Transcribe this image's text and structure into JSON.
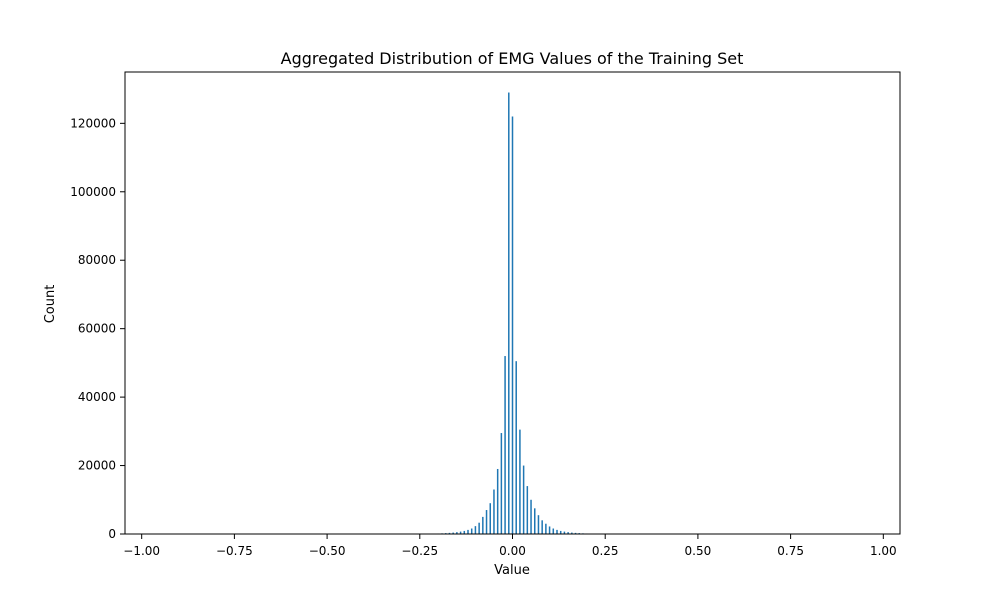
{
  "chart_data": {
    "type": "bar",
    "title": "Aggregated Distribution of EMG Values of the Training Set",
    "xlabel": "Value",
    "ylabel": "Count",
    "xlim": [
      -1.0,
      1.0
    ],
    "ylim": [
      0,
      135000
    ],
    "grid": false,
    "bar_color": "#1f77b4",
    "x_ticks": [
      -1.0,
      -0.75,
      -0.5,
      -0.25,
      0.0,
      0.25,
      0.5,
      0.75,
      1.0
    ],
    "x_tick_labels": [
      "−1.00",
      "−0.75",
      "−0.50",
      "−0.25",
      "0.00",
      "0.25",
      "0.50",
      "0.75",
      "1.00"
    ],
    "y_ticks": [
      0,
      20000,
      40000,
      60000,
      80000,
      100000,
      120000
    ],
    "y_tick_labels": [
      "0",
      "20000",
      "40000",
      "60000",
      "80000",
      "100000",
      "120000"
    ],
    "bar_width": 0.0035,
    "x": [
      -0.25,
      -0.24,
      -0.23,
      -0.22,
      -0.21,
      -0.2,
      -0.19,
      -0.18,
      -0.17,
      -0.16,
      -0.15,
      -0.14,
      -0.13,
      -0.12,
      -0.11,
      -0.1,
      -0.09,
      -0.08,
      -0.07,
      -0.06,
      -0.05,
      -0.04,
      -0.03,
      -0.02,
      -0.01,
      0.0,
      0.01,
      0.02,
      0.03,
      0.04,
      0.05,
      0.06,
      0.07,
      0.08,
      0.09,
      0.1,
      0.11,
      0.12,
      0.13,
      0.14,
      0.15,
      0.16,
      0.17,
      0.18,
      0.19,
      0.2,
      0.21,
      0.22,
      0.23,
      0.24,
      0.25
    ],
    "values": [
      30,
      40,
      60,
      80,
      110,
      150,
      200,
      260,
      330,
      420,
      550,
      700,
      900,
      1200,
      1600,
      2300,
      3300,
      5000,
      7000,
      9000,
      13000,
      19000,
      29500,
      52000,
      129000,
      122000,
      50500,
      30500,
      20000,
      14000,
      10000,
      7500,
      5500,
      4000,
      3000,
      2200,
      1600,
      1200,
      900,
      700,
      550,
      420,
      330,
      260,
      200,
      150,
      110,
      80,
      60,
      40,
      30
    ]
  }
}
